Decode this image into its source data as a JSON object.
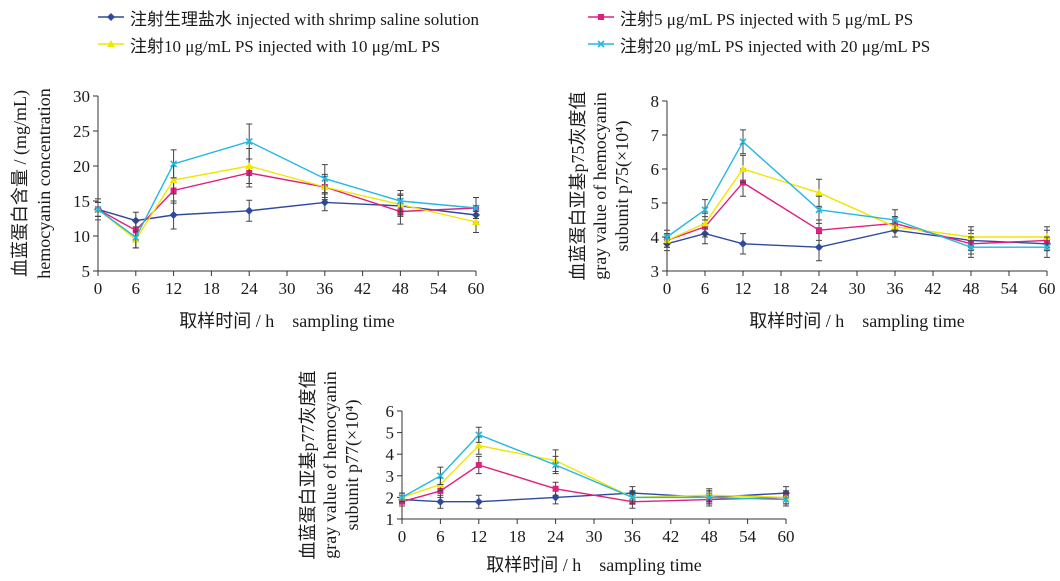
{
  "legend": [
    {
      "label": "注射生理盐水 injected with shrimp saline solution",
      "color": "#2e4a9e",
      "marker": "diamond"
    },
    {
      "label": "注射5 μg/mL PS injected with 5 μg/mL PS",
      "color": "#e0207f",
      "marker": "square"
    },
    {
      "label": "注射10 μg/mL PS injected with 10 μg/mL PS",
      "color": "#f0e600",
      "marker": "triangle"
    },
    {
      "label": "注射20 μg/mL PS injected with 20 μg/mL PS",
      "color": "#22b8e0",
      "marker": "x"
    }
  ],
  "chart_data": [
    {
      "type": "line",
      "xlabel": "取样时间 / h　sampling time",
      "ylabel_lines": [
        "血蓝蛋白含量 / (mg/mL)",
        "hemocyanin concentration"
      ],
      "x": [
        0,
        6,
        12,
        24,
        36,
        48,
        60
      ],
      "xticks": [
        0,
        6,
        12,
        18,
        24,
        30,
        36,
        42,
        48,
        54,
        60
      ],
      "yticks": [
        5,
        10,
        15,
        20,
        25,
        30
      ],
      "xlim": [
        0,
        60
      ],
      "ylim": [
        5,
        30
      ],
      "grid": false,
      "series": [
        {
          "legend_index": 0,
          "values": [
            13.8,
            12.2,
            13.0,
            13.6,
            14.8,
            14.3,
            13.0
          ],
          "errors": [
            1.5,
            1.2,
            2.0,
            1.5,
            1.2,
            1.5,
            1.0
          ]
        },
        {
          "legend_index": 1,
          "values": [
            13.8,
            10.8,
            16.5,
            19.0,
            17.0,
            13.5,
            14.0
          ],
          "errors": [
            1.0,
            1.5,
            1.8,
            2.0,
            1.5,
            1.8,
            1.5
          ]
        },
        {
          "legend_index": 2,
          "values": [
            13.8,
            9.5,
            18.0,
            20.0,
            17.0,
            14.5,
            12.0
          ],
          "errors": [
            1.0,
            1.2,
            2.0,
            2.5,
            1.8,
            1.5,
            1.5
          ]
        },
        {
          "legend_index": 3,
          "values": [
            13.8,
            9.8,
            20.3,
            23.5,
            18.2,
            15.0,
            14.0
          ],
          "errors": [
            1.0,
            1.5,
            2.0,
            2.5,
            2.0,
            1.5,
            1.5
          ]
        }
      ]
    },
    {
      "type": "line",
      "xlabel": "取样时间 / h　sampling time",
      "ylabel_lines": [
        "血蓝蛋白亚基p75灰度值",
        "gray value of hemocyanin",
        "subunit p75(×10⁴)"
      ],
      "x": [
        0,
        6,
        12,
        24,
        36,
        48,
        60
      ],
      "xticks": [
        0,
        6,
        12,
        18,
        24,
        30,
        36,
        42,
        48,
        54,
        60
      ],
      "yticks": [
        3,
        4,
        5,
        6,
        7,
        8
      ],
      "xlim": [
        0,
        60
      ],
      "ylim": [
        3,
        8
      ],
      "grid": false,
      "series": [
        {
          "legend_index": 0,
          "values": [
            3.8,
            4.1,
            3.8,
            3.7,
            4.2,
            3.9,
            3.8
          ],
          "errors": [
            0.2,
            0.3,
            0.3,
            0.4,
            0.2,
            0.3,
            0.2
          ]
        },
        {
          "legend_index": 1,
          "values": [
            3.9,
            4.3,
            5.6,
            4.2,
            4.4,
            3.8,
            3.9
          ],
          "errors": [
            0.2,
            0.3,
            0.4,
            0.3,
            0.2,
            0.3,
            0.3
          ]
        },
        {
          "legend_index": 2,
          "values": [
            3.9,
            4.4,
            6.0,
            5.3,
            4.3,
            4.0,
            4.0
          ],
          "errors": [
            0.2,
            0.3,
            0.4,
            0.4,
            0.3,
            0.3,
            0.3
          ]
        },
        {
          "legend_index": 3,
          "values": [
            4.0,
            4.8,
            6.8,
            4.8,
            4.5,
            3.7,
            3.7
          ],
          "errors": [
            0.2,
            0.3,
            0.35,
            0.4,
            0.3,
            0.3,
            0.3
          ]
        }
      ]
    },
    {
      "type": "line",
      "xlabel": "取样时间 / h　sampling time",
      "ylabel_lines": [
        "血蓝蛋白亚基p77灰度值",
        "gray value of hemocyanin",
        "subunit p77(×10⁴)"
      ],
      "x": [
        0,
        6,
        12,
        24,
        36,
        48,
        60
      ],
      "xticks": [
        0,
        6,
        12,
        18,
        24,
        30,
        36,
        42,
        48,
        54,
        60
      ],
      "yticks": [
        1,
        2,
        3,
        4,
        5,
        6
      ],
      "xlim": [
        0,
        60
      ],
      "ylim": [
        1,
        6
      ],
      "grid": false,
      "series": [
        {
          "legend_index": 0,
          "values": [
            1.9,
            1.8,
            1.8,
            2.0,
            2.2,
            2.0,
            2.2
          ],
          "errors": [
            0.2,
            0.3,
            0.3,
            0.3,
            0.3,
            0.3,
            0.3
          ]
        },
        {
          "legend_index": 1,
          "values": [
            1.8,
            2.3,
            3.5,
            2.4,
            1.8,
            1.9,
            2.0
          ],
          "errors": [
            0.2,
            0.3,
            0.4,
            0.3,
            0.3,
            0.3,
            0.3
          ]
        },
        {
          "legend_index": 2,
          "values": [
            2.0,
            2.6,
            4.4,
            3.7,
            2.0,
            2.1,
            2.0
          ],
          "errors": [
            0.2,
            0.3,
            0.4,
            0.5,
            0.3,
            0.3,
            0.3
          ]
        },
        {
          "legend_index": 3,
          "values": [
            2.0,
            3.0,
            4.9,
            3.5,
            2.0,
            2.0,
            1.9
          ],
          "errors": [
            0.2,
            0.4,
            0.35,
            0.4,
            0.3,
            0.3,
            0.3
          ]
        }
      ]
    }
  ]
}
